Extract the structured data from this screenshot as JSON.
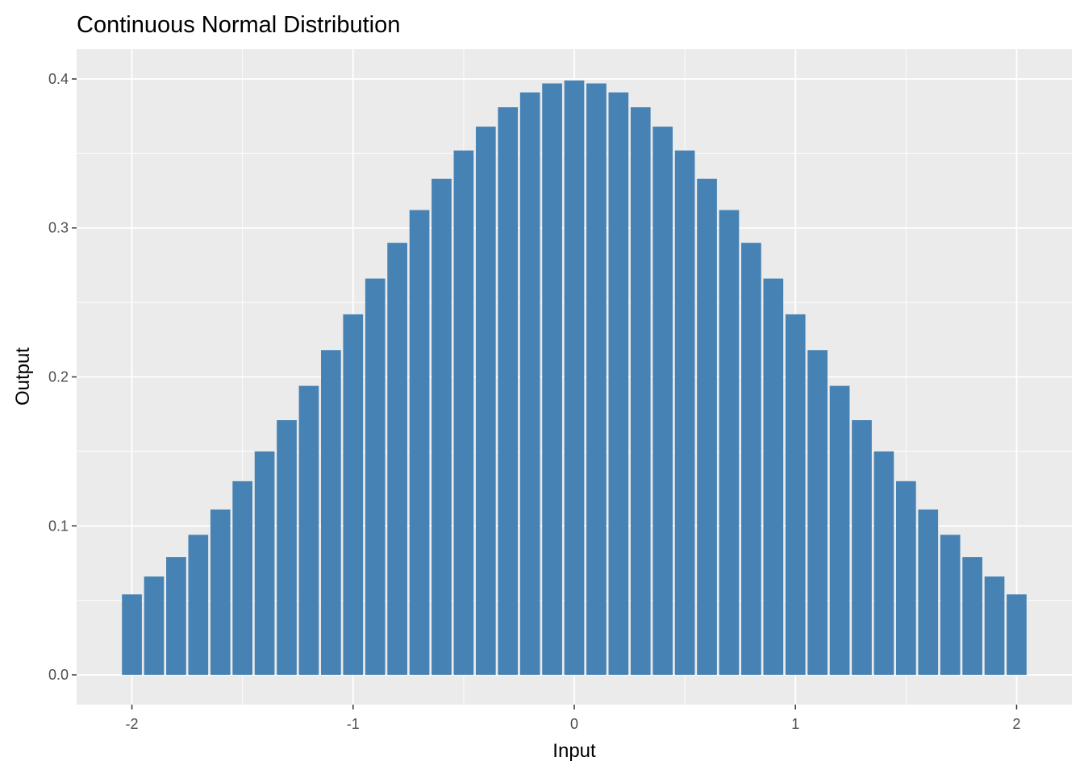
{
  "chart_data": {
    "type": "bar",
    "title": "Continuous Normal Distribution",
    "xlabel": "Input",
    "ylabel": "Output",
    "xlim": [
      -2.25,
      2.25
    ],
    "ylim": [
      -0.02,
      0.42
    ],
    "x_ticks": [
      -2,
      -1,
      0,
      1,
      2
    ],
    "x_tick_labels": [
      "-2",
      "-1",
      "0",
      "1",
      "2"
    ],
    "y_ticks": [
      0.0,
      0.1,
      0.2,
      0.3,
      0.4
    ],
    "y_tick_labels": [
      "0.0",
      "0.1",
      "0.2",
      "0.3",
      "0.4"
    ],
    "grid": true,
    "bar_color": "#4682B4",
    "panel_color": "#EBEBEB",
    "grid_color": "#FFFFFF",
    "bar_width": 0.09,
    "x": [
      -2.0,
      -1.9,
      -1.8,
      -1.7,
      -1.6,
      -1.5,
      -1.4,
      -1.3,
      -1.2,
      -1.1,
      -1.0,
      -0.9,
      -0.8,
      -0.7,
      -0.6,
      -0.5,
      -0.4,
      -0.3,
      -0.2,
      -0.1,
      0.0,
      0.1,
      0.2,
      0.3,
      0.4,
      0.5,
      0.6,
      0.7,
      0.8,
      0.9,
      1.0,
      1.1,
      1.2,
      1.3,
      1.4,
      1.5,
      1.6,
      1.7,
      1.8,
      1.9,
      2.0
    ],
    "values": [
      0.054,
      0.066,
      0.079,
      0.094,
      0.111,
      0.13,
      0.15,
      0.171,
      0.194,
      0.218,
      0.242,
      0.266,
      0.29,
      0.312,
      0.333,
      0.352,
      0.368,
      0.381,
      0.391,
      0.397,
      0.399,
      0.397,
      0.391,
      0.381,
      0.368,
      0.352,
      0.333,
      0.312,
      0.29,
      0.266,
      0.242,
      0.218,
      0.194,
      0.171,
      0.15,
      0.13,
      0.111,
      0.094,
      0.079,
      0.066,
      0.054
    ]
  }
}
